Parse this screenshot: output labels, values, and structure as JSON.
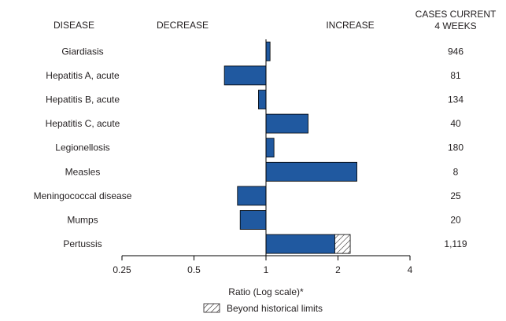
{
  "chart_data": {
    "type": "bar",
    "orientation": "horizontal",
    "x_scale": "log2",
    "xlim": [
      0.25,
      4
    ],
    "x_ticks": [
      0.25,
      0.5,
      1,
      2,
      4
    ],
    "x_tick_labels": [
      "0.25",
      "0.5",
      "1",
      "2",
      "4"
    ],
    "baseline": 1,
    "xlabel": "Ratio (Log scale)*",
    "headers": {
      "disease": "DISEASE",
      "decrease": "DECREASE",
      "increase": "INCREASE",
      "cases_line1": "CASES CURRENT",
      "cases_line2": "4 WEEKS"
    },
    "categories": [
      "Giardiasis",
      "Hepatitis A, acute",
      "Hepatitis B, acute",
      "Hepatitis C, acute",
      "Legionellosis",
      "Measles",
      "Meningococcal disease",
      "Mumps",
      "Pertussis"
    ],
    "values": [
      1.04,
      0.67,
      0.93,
      1.5,
      1.08,
      2.4,
      0.76,
      0.78,
      2.25
    ],
    "beyond_limits_from": [
      null,
      null,
      null,
      null,
      null,
      null,
      null,
      null,
      1.94
    ],
    "cases_current_4_weeks": [
      "946",
      "81",
      "134",
      "40",
      "180",
      "8",
      "25",
      "20",
      "1,119"
    ],
    "legend": {
      "label": "Beyond historical limits",
      "position": "bottom-center"
    },
    "colors": {
      "bar_fill": "#2059a0",
      "bar_stroke": "#000000",
      "axis": "#000000",
      "text": "#231f20"
    }
  }
}
